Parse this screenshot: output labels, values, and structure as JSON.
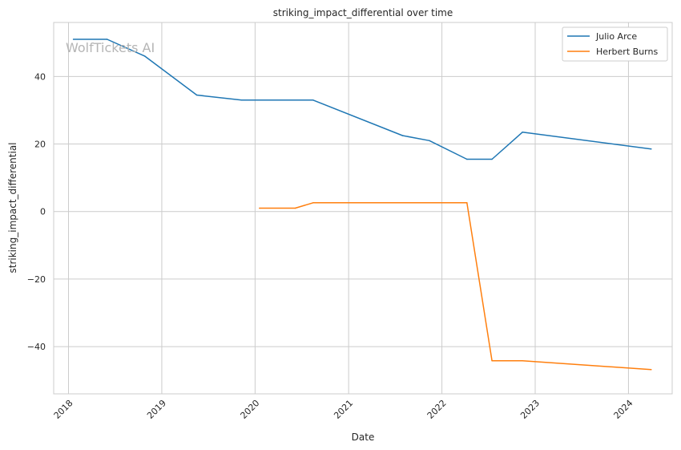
{
  "watermark": "WolfTickets AI",
  "chart_data": {
    "type": "line",
    "title": "striking_impact_differential over time",
    "xlabel": "Date",
    "ylabel": "striking_impact_differential",
    "x_ticks": [
      "2018",
      "2019",
      "2020",
      "2021",
      "2022",
      "2023",
      "2024"
    ],
    "y_ticks": [
      -40,
      -20,
      0,
      20,
      40
    ],
    "xlim": [
      "2017-11-04",
      "2024-06-20"
    ],
    "ylim": [
      -54,
      56
    ],
    "grid": true,
    "legend_position": "top-right",
    "series": [
      {
        "name": "Julio Arce",
        "color": "#1f77b4",
        "points": [
          {
            "x": "2018-01-20",
            "y": 51.0
          },
          {
            "x": "2018-06-01",
            "y": 51.0
          },
          {
            "x": "2018-10-27",
            "y": 46.0
          },
          {
            "x": "2019-05-18",
            "y": 34.5
          },
          {
            "x": "2019-11-09",
            "y": 33.0
          },
          {
            "x": "2020-08-15",
            "y": 33.0
          },
          {
            "x": "2021-07-31",
            "y": 22.5
          },
          {
            "x": "2021-11-13",
            "y": 21.0
          },
          {
            "x": "2022-04-09",
            "y": 15.5
          },
          {
            "x": "2022-07-16",
            "y": 15.5
          },
          {
            "x": "2022-11-12",
            "y": 23.5
          },
          {
            "x": "2024-03-30",
            "y": 18.5
          }
        ]
      },
      {
        "name": "Herbert Burns",
        "color": "#ff7f0e",
        "points": [
          {
            "x": "2020-01-18",
            "y": 1.0
          },
          {
            "x": "2020-06-06",
            "y": 1.0
          },
          {
            "x": "2020-08-15",
            "y": 2.6
          },
          {
            "x": "2022-04-09",
            "y": 2.6
          },
          {
            "x": "2022-07-16",
            "y": -44.2
          },
          {
            "x": "2022-11-12",
            "y": -44.2
          },
          {
            "x": "2024-03-30",
            "y": -46.8
          }
        ]
      }
    ]
  }
}
